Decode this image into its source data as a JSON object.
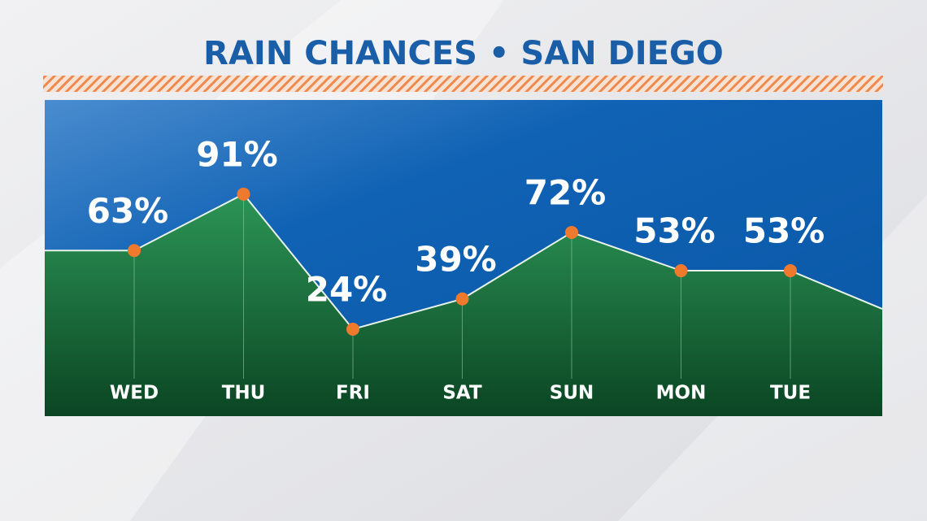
{
  "chart_data": {
    "type": "area",
    "title": "RAIN CHANCES • SAN DIEGO",
    "categories": [
      "WED",
      "THU",
      "FRI",
      "SAT",
      "SUN",
      "MON",
      "TUE"
    ],
    "values": [
      63,
      91,
      24,
      39,
      72,
      53,
      53
    ],
    "value_labels": [
      "63%",
      "91%",
      "24%",
      "39%",
      "72%",
      "53%",
      "53%"
    ],
    "color": "#ef7a2e"
  }
}
